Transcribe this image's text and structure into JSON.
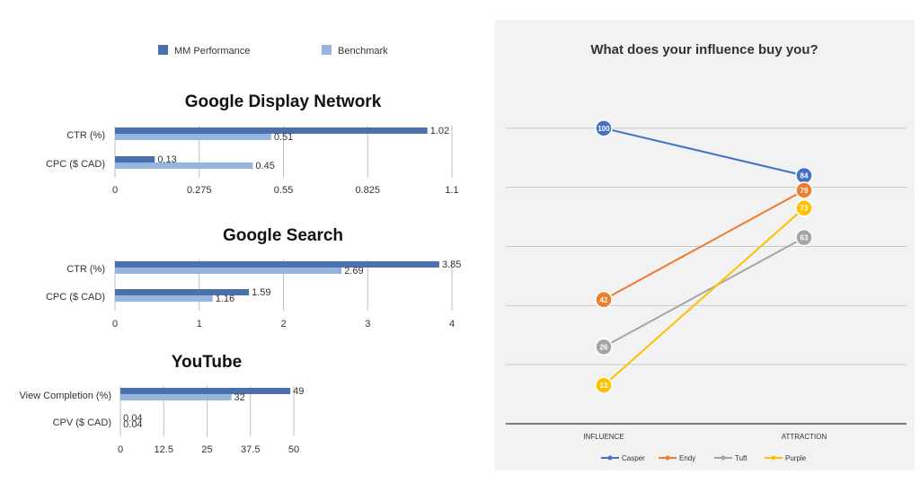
{
  "left_panel": {
    "legend": [
      {
        "name": "MM Performance",
        "color": "#4b71ad"
      },
      {
        "name": "Benchmark",
        "color": "#95b5de"
      }
    ]
  },
  "chart_data": [
    {
      "type": "bar",
      "orientation": "horizontal",
      "title": "Google Display Network",
      "categories": [
        "CTR (%)",
        "CPC ($ CAD)"
      ],
      "series": [
        {
          "name": "MM Performance",
          "values": [
            1.02,
            0.13
          ]
        },
        {
          "name": "Benchmark",
          "values": [
            0.51,
            0.45
          ]
        }
      ],
      "value_labels": [
        [
          "1.02",
          "0.13"
        ],
        [
          "0.51",
          "0.45"
        ]
      ],
      "xlim": [
        0,
        1.1
      ],
      "ticks": [
        "0",
        "0.275",
        "0.55",
        "0.825",
        "1.1"
      ],
      "grid": true,
      "legend": "top"
    },
    {
      "type": "bar",
      "orientation": "horizontal",
      "title": "Google Search",
      "categories": [
        "CTR (%)",
        "CPC ($ CAD)"
      ],
      "series": [
        {
          "name": "MM Performance",
          "values": [
            3.85,
            1.59
          ]
        },
        {
          "name": "Benchmark",
          "values": [
            2.69,
            1.16
          ]
        }
      ],
      "value_labels": [
        [
          "3.85",
          "1.59"
        ],
        [
          "2.69",
          "1.16"
        ]
      ],
      "xlim": [
        0,
        4
      ],
      "ticks": [
        "0",
        "1",
        "2",
        "3",
        "4"
      ],
      "grid": true
    },
    {
      "type": "bar",
      "orientation": "horizontal",
      "title": "YouTube",
      "categories": [
        "View Completion (%)",
        "CPV ($ CAD)"
      ],
      "series": [
        {
          "name": "MM Performance",
          "values": [
            49,
            0.04
          ]
        },
        {
          "name": "Benchmark",
          "values": [
            32,
            0.04
          ]
        }
      ],
      "value_labels": [
        [
          "49",
          "0.04"
        ],
        [
          "32",
          "0.04"
        ]
      ],
      "xlim": [
        0,
        50
      ],
      "ticks": [
        "0",
        "12.5",
        "25",
        "37.5",
        "50"
      ],
      "grid": true
    },
    {
      "type": "line",
      "title": "What does your influence buy you?",
      "categories": [
        "INFLUENCE",
        "ATTRACTION"
      ],
      "series": [
        {
          "name": "Casper",
          "color": "#4472c4",
          "values": [
            100,
            84
          ]
        },
        {
          "name": "Endy",
          "color": "#ed7d31",
          "values": [
            42,
            79
          ]
        },
        {
          "name": "Tuft",
          "color": "#a5a5a5",
          "values": [
            26,
            63
          ]
        },
        {
          "name": "Purple",
          "color": "#ffc000",
          "values": [
            13,
            73
          ]
        }
      ],
      "ylim": [
        0,
        120
      ],
      "grid": true,
      "legend": "bottom",
      "data_labels": true
    }
  ]
}
